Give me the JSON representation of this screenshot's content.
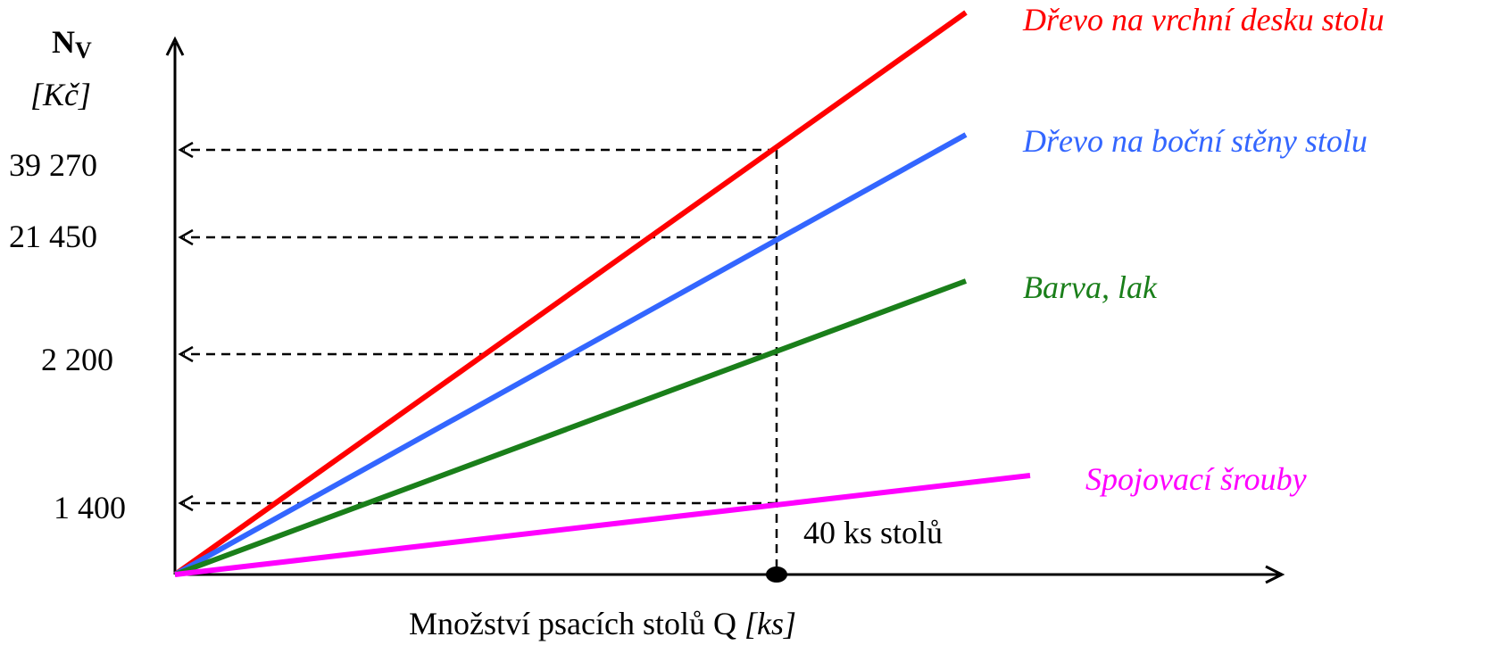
{
  "chart_data": {
    "type": "line",
    "ylabel_symbol": "N",
    "ylabel_subscript": "V",
    "ylabel_unit": "[Kč]",
    "xlabel_text": "Množství psacích stolů Q ",
    "xlabel_unit": "[ks]",
    "x_marker_value": 40,
    "x_marker_label": "40 ks stolů",
    "yticks": [
      "39 270",
      "21 450",
      "2 200",
      "1 400"
    ],
    "series": [
      {
        "name": "Dřevo na vrchní desku stolu",
        "color": "#ff0000",
        "value_at_marker": "39 270"
      },
      {
        "name": "Dřevo na boční stěny stolu",
        "color": "#3366ff",
        "value_at_marker": "21 450"
      },
      {
        "name": "Barva, lak",
        "color": "#1a7f1a",
        "value_at_marker": "2 200"
      },
      {
        "name": "Spojovací šrouby",
        "color": "#ff00ff",
        "value_at_marker": "1 400"
      }
    ]
  }
}
